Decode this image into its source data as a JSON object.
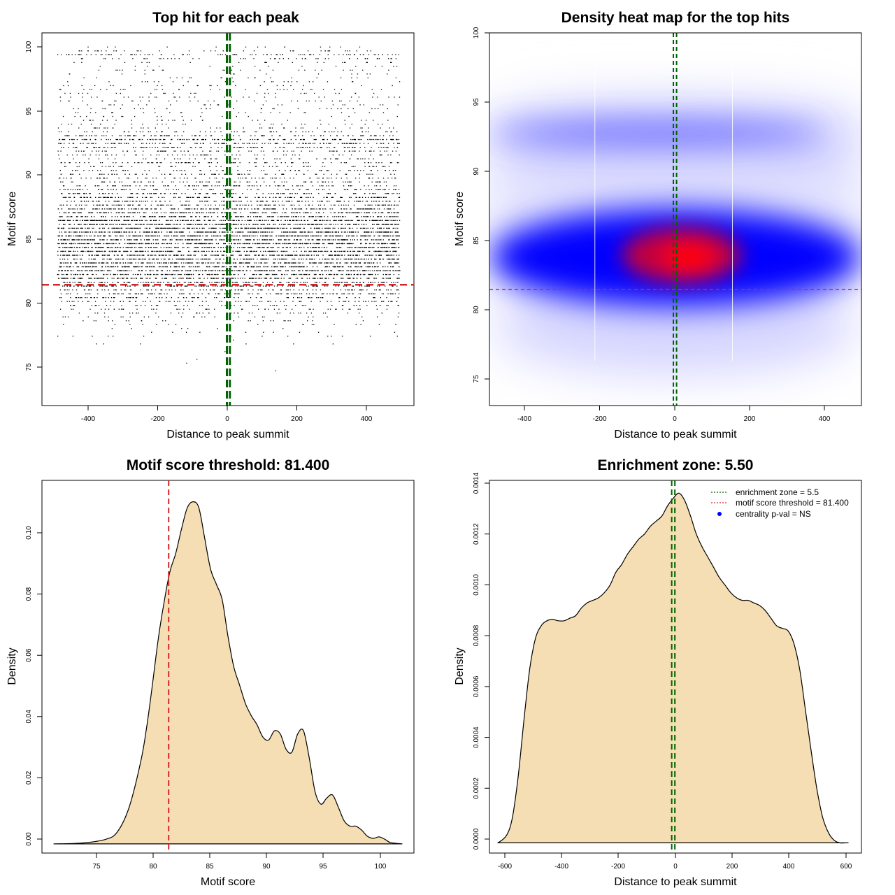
{
  "colors": {
    "threshold_red": "#d62728",
    "zone_green": "#006400",
    "fill_wheat": "#f5deb3",
    "points": "#000000",
    "heat_low": "#ffffff",
    "heat_mid": "#0000ff",
    "heat_high": "#ff0000"
  },
  "chart_data": [
    {
      "type": "scatter",
      "title": "Top hit for each peak",
      "xlabel": "Distance to peak summit",
      "ylabel": "Motif score",
      "xlim": [
        -535,
        535
      ],
      "ylim": [
        72,
        101
      ],
      "xticks": [
        -400,
        -200,
        0,
        200,
        400
      ],
      "yticks": [
        75,
        80,
        85,
        90,
        95,
        100
      ],
      "xtick_labels": [
        "-400",
        "-200",
        "0",
        "200",
        "400"
      ],
      "ytick_labels": [
        "75",
        "80",
        "85",
        "90",
        "95",
        "100"
      ],
      "threshold_y": 81.4,
      "zone_x": [
        -3,
        5.5
      ],
      "point_summary": {
        "n_points": 9000,
        "x_range": [
          -490,
          495
        ],
        "score_mode": 84,
        "score_min": 73,
        "score_max": 100
      }
    },
    {
      "type": "heatmap",
      "title": "Density heat map for the top hits",
      "xlabel": "Distance to peak summit",
      "ylabel": "Motif score",
      "xlim": [
        -495,
        500
      ],
      "ylim": [
        73,
        100
      ],
      "xticks": [
        -400,
        -200,
        0,
        200,
        400
      ],
      "yticks": [
        75,
        80,
        85,
        90,
        95,
        100
      ],
      "xtick_labels": [
        "-400",
        "-200",
        "0",
        "200",
        "400"
      ],
      "ytick_labels": [
        "75",
        "80",
        "85",
        "90",
        "95",
        "100"
      ],
      "threshold_y": 81.4,
      "zone_x": [
        -3,
        5.5
      ],
      "peak_density": {
        "x": 20,
        "y": 84
      },
      "bin_edges_x": [
        -213,
        155
      ]
    },
    {
      "type": "area",
      "title": "Motif score threshold: 81.400",
      "xlabel": "Motif score",
      "ylabel": "Density",
      "xlim": [
        70.5,
        102.5
      ],
      "ylim": [
        -0.003,
        0.119
      ],
      "xticks": [
        75,
        80,
        85,
        90,
        95,
        100
      ],
      "yticks": [
        0,
        0.02,
        0.04,
        0.06,
        0.08,
        0.1
      ],
      "xtick_labels": [
        "75",
        "80",
        "85",
        "90",
        "95",
        "100"
      ],
      "ytick_labels": [
        "0.00",
        "0.02",
        "0.04",
        "0.06",
        "0.08",
        "0.10"
      ],
      "threshold_x": 81.4,
      "x": [
        71.5,
        74,
        76,
        77,
        78,
        79,
        79.5,
        80,
        80.5,
        81,
        81.5,
        82,
        82.5,
        83,
        83.5,
        84,
        84.5,
        85,
        85.5,
        86,
        86.5,
        87,
        87.5,
        88,
        88.5,
        89,
        89.5,
        90,
        90.5,
        91,
        91.5,
        92,
        92.5,
        93,
        93.5,
        94,
        94.5,
        95,
        95.5,
        96,
        96.5,
        97,
        97.5,
        98,
        98.5,
        99,
        99.5,
        100,
        100.5,
        101.5
      ],
      "y": [
        0.0,
        0.0003,
        0.0015,
        0.004,
        0.012,
        0.027,
        0.038,
        0.052,
        0.067,
        0.079,
        0.089,
        0.095,
        0.103,
        0.11,
        0.112,
        0.11,
        0.1,
        0.09,
        0.085,
        0.08,
        0.068,
        0.058,
        0.052,
        0.046,
        0.042,
        0.039,
        0.035,
        0.034,
        0.037,
        0.036,
        0.031,
        0.03,
        0.036,
        0.037,
        0.028,
        0.017,
        0.013,
        0.015,
        0.016,
        0.012,
        0.0075,
        0.0058,
        0.0058,
        0.0045,
        0.0025,
        0.0018,
        0.0023,
        0.0015,
        0.0004,
        0.0
      ]
    },
    {
      "type": "area",
      "title": "Enrichment zone: 5.50",
      "xlabel": "Distance to peak summit",
      "ylabel": "Density",
      "xlim": [
        -640,
        655
      ],
      "ylim": [
        -4e-05,
        0.00142
      ],
      "xticks": [
        -600,
        -400,
        -200,
        0,
        200,
        400,
        600
      ],
      "yticks": [
        0,
        0.0002,
        0.0004,
        0.0006,
        0.0008,
        0.001,
        0.0012,
        0.0014
      ],
      "xtick_labels": [
        "-600",
        "-400",
        "-200",
        "0",
        "200",
        "400",
        "600"
      ],
      "ytick_labels": [
        "0.0000",
        "0.0002",
        "0.0004",
        "0.0006",
        "0.0008",
        "0.0010",
        "0.0012",
        "0.0014"
      ],
      "zone_x": [
        -5.5,
        5.5
      ],
      "x": [
        -610,
        -580,
        -560,
        -540,
        -520,
        -500,
        -480,
        -460,
        -440,
        -420,
        -400,
        -380,
        -360,
        -340,
        -320,
        -300,
        -280,
        -260,
        -240,
        -220,
        -200,
        -180,
        -160,
        -140,
        -120,
        -100,
        -80,
        -60,
        -40,
        -20,
        0,
        20,
        40,
        60,
        80,
        100,
        120,
        140,
        160,
        180,
        200,
        220,
        240,
        260,
        280,
        300,
        320,
        340,
        360,
        380,
        400,
        420,
        440,
        460,
        480,
        500,
        520,
        540,
        560,
        580,
        600,
        610
      ],
      "y": [
        0.0,
        3e-05,
        0.0001,
        0.00026,
        0.00048,
        0.00068,
        0.0008,
        0.00085,
        0.00087,
        0.000875,
        0.00087,
        0.00087,
        0.00088,
        0.00089,
        0.00092,
        0.00094,
        0.00095,
        0.00096,
        0.00098,
        0.00101,
        0.00106,
        0.00109,
        0.00113,
        0.00116,
        0.00119,
        0.00121,
        0.00124,
        0.00126,
        0.00128,
        0.00132,
        0.00135,
        0.00137,
        0.00134,
        0.00128,
        0.00121,
        0.00116,
        0.00112,
        0.00108,
        0.00104,
        0.00101,
        0.00098,
        0.00096,
        0.00095,
        0.00095,
        0.00094,
        0.00093,
        0.00091,
        0.00088,
        0.00085,
        0.00084,
        0.00083,
        0.00078,
        0.00068,
        0.00052,
        0.00036,
        0.00021,
        0.0001,
        4e-05,
        1e-05,
        0.0,
        0.0,
        0.0
      ],
      "legend_position": "top-right",
      "legend": [
        {
          "label": "enrichment zone = 5.5",
          "style": "dotted",
          "color": "#006400"
        },
        {
          "label": "motif score threshold = 81.400",
          "style": "dotted",
          "color": "#d62728"
        },
        {
          "label": "centrality p-val = NS",
          "style": "point",
          "color": "#0000ff"
        }
      ]
    }
  ]
}
